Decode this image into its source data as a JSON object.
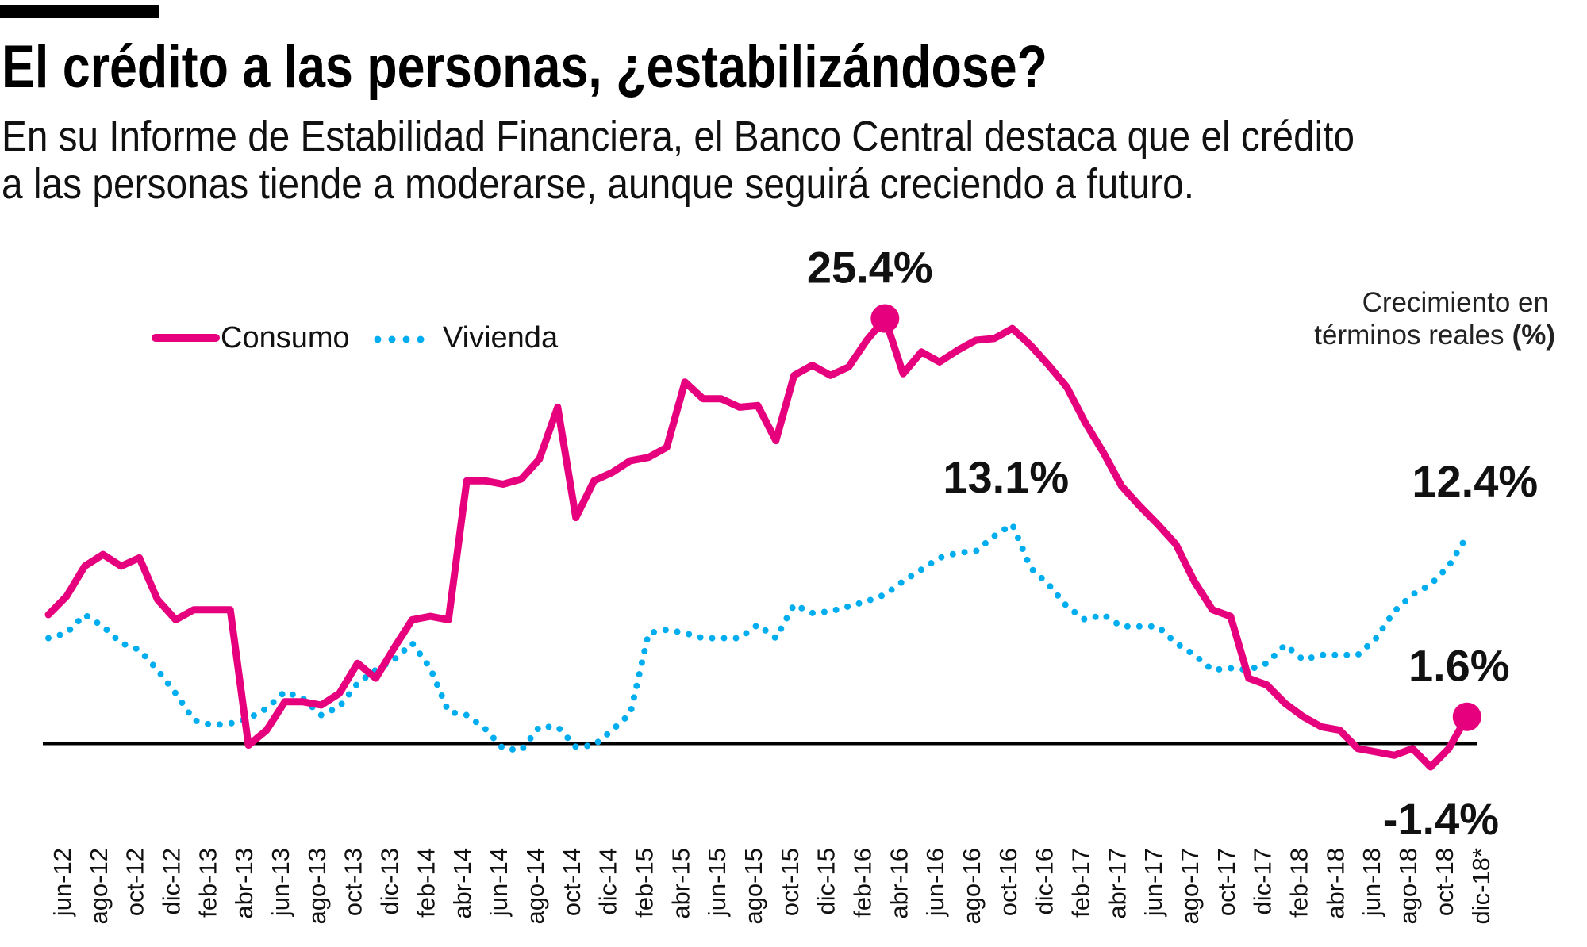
{
  "header": {
    "title": "El crédito a las personas, ¿estabilizándose?",
    "subtitle_line1": "En su Informe de Estabilidad Financiera, el Banco Central destaca que el crédito",
    "subtitle_line2": "a las personas tiende a moderarse, aunque seguirá creciendo a futuro."
  },
  "chart_data": {
    "type": "line",
    "title": "El crédito a las personas, ¿estabilizándose?",
    "ylabel_line1": "Crecimiento en",
    "ylabel_line2": "términos reales",
    "ylabel_unit": "(%)",
    "x_start": "jun-12",
    "x_end": "dic-18",
    "x_frequency": "monthly",
    "tick_labels": [
      "jun-12",
      "ago-12",
      "oct-12",
      "dic-12",
      "feb-13",
      "abr-13",
      "jun-13",
      "ago-13",
      "oct-13",
      "dic-13",
      "feb-14",
      "abr-14",
      "jun-14",
      "ago-14",
      "oct-14",
      "dic-14",
      "feb-15",
      "abr-15",
      "jun-15",
      "ago-15",
      "oct-15",
      "dic-15",
      "feb-16",
      "abr-16",
      "jun-16",
      "ago-16",
      "oct-16",
      "dic-16",
      "feb-17",
      "abr-17",
      "jun-17",
      "ago-17",
      "oct-17",
      "dic-17",
      "feb-18",
      "abr-18",
      "jun-18",
      "ago-18",
      "oct-18",
      "dic-18*"
    ],
    "ylim": [
      -2,
      27
    ],
    "grid": false,
    "zero_line": true,
    "legend_placement": "top-left",
    "series": [
      {
        "name": "Consumo",
        "color": "#e6007e",
        "style": "solid",
        "values": [
          7.7,
          8.8,
          10.6,
          11.3,
          10.6,
          11.1,
          8.6,
          7.4,
          8.0,
          8.0,
          8.0,
          -0.1,
          0.8,
          2.5,
          2.5,
          2.3,
          3.0,
          4.8,
          3.9,
          5.7,
          7.4,
          7.6,
          7.4,
          15.7,
          15.7,
          15.5,
          15.8,
          17.0,
          20.1,
          13.5,
          15.7,
          16.2,
          16.9,
          17.1,
          17.7,
          21.6,
          20.6,
          20.6,
          20.1,
          20.2,
          18.1,
          22.0,
          22.6,
          22.0,
          22.5,
          24.1,
          25.4,
          22.1,
          23.4,
          22.8,
          23.5,
          24.1,
          24.2,
          24.8,
          23.8,
          22.6,
          21.3,
          19.2,
          17.4,
          15.4,
          14.2,
          13.1,
          11.9,
          9.7,
          8.0,
          7.6,
          3.9,
          3.5,
          2.4,
          1.6,
          1.0,
          0.8,
          -0.3,
          -0.5,
          -0.7,
          -0.3,
          -1.4,
          -0.3,
          1.6
        ]
      },
      {
        "name": "Vivienda",
        "color": "#00aeef",
        "style": "dotted",
        "values": [
          6.3,
          6.6,
          7.7,
          7.0,
          6.0,
          5.6,
          4.4,
          3.0,
          1.4,
          1.1,
          1.2,
          1.5,
          2.1,
          3.1,
          2.7,
          1.7,
          2.2,
          3.6,
          4.4,
          5.0,
          6.0,
          4.5,
          1.9,
          1.7,
          0.9,
          -0.3,
          -0.4,
          1.0,
          1.0,
          -0.2,
          -0.1,
          0.8,
          1.8,
          6.6,
          6.8,
          6.6,
          6.3,
          6.3,
          6.3,
          7.1,
          6.3,
          8.3,
          7.8,
          7.9,
          8.2,
          8.5,
          8.9,
          9.7,
          10.4,
          11.1,
          11.4,
          11.5,
          12.4,
          13.1,
          10.5,
          9.5,
          8.2,
          7.4,
          7.7,
          7.0,
          7.0,
          7.0,
          6.0,
          5.3,
          4.4,
          4.5,
          4.4,
          4.8,
          5.9,
          5.0,
          5.3,
          5.3,
          5.3,
          6.3,
          7.9,
          8.9,
          9.5,
          10.6,
          12.4
        ]
      }
    ],
    "annotations": [
      {
        "text": "25.4%",
        "series": "Consumo",
        "index": 46,
        "marker": true
      },
      {
        "text": "13.1%",
        "series": "Vivienda",
        "index": 53,
        "marker": false
      },
      {
        "text": "12.4%",
        "series": "Vivienda",
        "index": 78,
        "marker": false
      },
      {
        "text": "1.6%",
        "series": "Consumo",
        "index": 78,
        "marker": true
      },
      {
        "text": "-1.4%",
        "series": "Consumo",
        "index": 76,
        "marker": false
      }
    ]
  }
}
